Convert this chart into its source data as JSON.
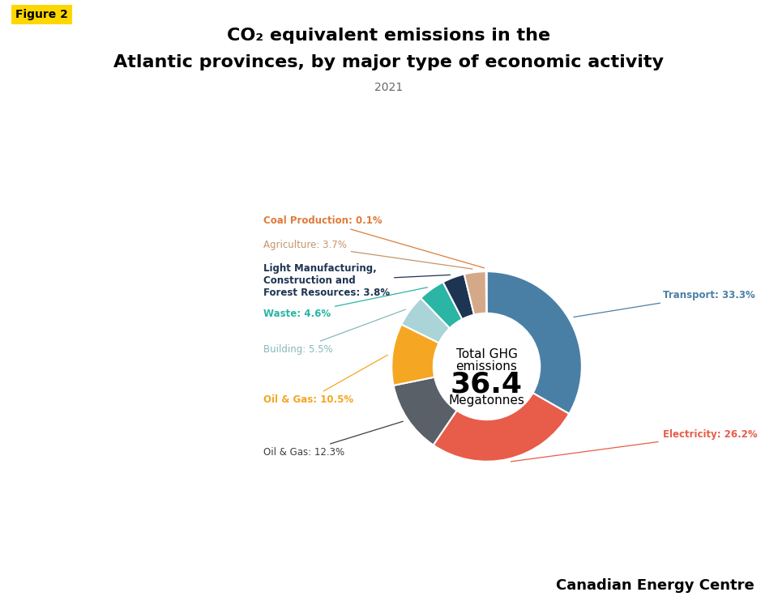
{
  "title_line1": "CO₂ equivalent emissions in the",
  "title_line2": "Atlantic provinces, by major type of economic activity",
  "subtitle": "2021",
  "figure_label": "Figure 2",
  "center_text_line1": "Total GHG",
  "center_text_line2": "emissions",
  "center_text_value": "36.4",
  "center_text_unit": "Megatonnes",
  "total": 36.4,
  "slices": [
    {
      "label": "Transport: 33.3%",
      "short": "Transport: 33.3%",
      "pct": 33.3,
      "color": "#4a7fa5",
      "label_color": "#4a7fa5",
      "bold": true
    },
    {
      "label": "Electricity: 26.2%",
      "short": "Electricity: 26.2%",
      "pct": 26.2,
      "color": "#e85c4a",
      "label_color": "#e85c4a",
      "bold": true
    },
    {
      "label": "Oil & Gas: 12.3%",
      "short": "Oil & Gas: 12.3%",
      "pct": 12.3,
      "color": "#5a6068",
      "label_color": "#3d3d3d",
      "bold": false
    },
    {
      "label": "Oil & Gas: 10.5%",
      "short": "Oil & Gas: 10.5%",
      "pct": 10.5,
      "color": "#f5a623",
      "label_color": "#f5a623",
      "bold": true
    },
    {
      "label": "Building: 5.5%",
      "short": "Building: 5.5%",
      "pct": 5.5,
      "color": "#aad4d8",
      "label_color": "#88b8bc",
      "bold": false
    },
    {
      "label": "Waste: 4.6%",
      "short": "Waste: 4.6%",
      "pct": 4.6,
      "color": "#2ab5a5",
      "label_color": "#2ab5a5",
      "bold": true
    },
    {
      "label": "Light Manufacturing,\nConstruction and\nForest Resources: 3.8%",
      "short": "Light Manufacturing,\nConstruction and\nForest Resources: 3.8%",
      "pct": 3.8,
      "color": "#1d3452",
      "label_color": "#1d3452",
      "bold": true
    },
    {
      "label": "Agriculture: 3.7%",
      "short": "Agriculture: 3.7%",
      "pct": 3.7,
      "color": "#d4a98a",
      "label_color": "#c4956a",
      "bold": false
    },
    {
      "label": "Coal Production: 0.1%",
      "short": "Coal Production: 0.1%",
      "pct": 0.1,
      "color": "#e07b39",
      "label_color": "#e07b39",
      "bold": true
    }
  ],
  "background_color": "#ffffff",
  "footer_text": "Canadian Energy Centre",
  "start_angle": 90,
  "donut_width": 0.44
}
